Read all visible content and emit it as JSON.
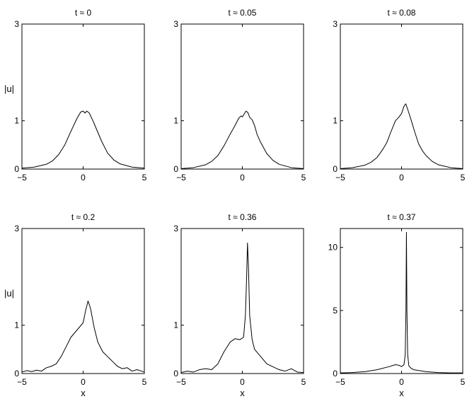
{
  "chart_data": [
    {
      "type": "line",
      "title": "t ≈ 0",
      "xlabel": "",
      "ylabel": "|u|",
      "xlim": [
        -5,
        5
      ],
      "ylim": [
        0,
        3
      ],
      "xticks": [
        "−5",
        "0",
        "5"
      ],
      "yticks": [
        "0",
        "1",
        "3"
      ],
      "ytick_values": [
        0,
        1,
        3
      ],
      "x": [
        -5.0,
        -4.0,
        -3.0,
        -2.5,
        -2.0,
        -1.5,
        -1.0,
        -0.5,
        -0.2,
        0.0,
        0.15,
        0.3,
        0.5,
        0.8,
        1.0,
        1.5,
        2.0,
        2.5,
        3.0,
        4.0,
        5.0
      ],
      "values": [
        0.02,
        0.04,
        0.1,
        0.17,
        0.3,
        0.5,
        0.78,
        1.05,
        1.18,
        1.2,
        1.16,
        1.2,
        1.16,
        1.0,
        0.88,
        0.58,
        0.33,
        0.19,
        0.11,
        0.04,
        0.02
      ]
    },
    {
      "type": "line",
      "title": "t ≈ 0.05",
      "xlabel": "",
      "ylabel": "",
      "xlim": [
        -5,
        5
      ],
      "ylim": [
        0,
        3
      ],
      "xticks": [
        "−5",
        "0",
        "5"
      ],
      "yticks": [
        "0",
        "1",
        "3"
      ],
      "ytick_values": [
        0,
        1,
        3
      ],
      "x": [
        -5.0,
        -4.0,
        -3.0,
        -2.5,
        -2.0,
        -1.5,
        -1.0,
        -0.6,
        -0.3,
        -0.1,
        0.0,
        0.1,
        0.3,
        0.45,
        0.6,
        0.8,
        1.0,
        1.2,
        1.5,
        2.0,
        2.5,
        3.0,
        4.0,
        5.0
      ],
      "values": [
        0.01,
        0.03,
        0.09,
        0.16,
        0.28,
        0.48,
        0.72,
        0.9,
        1.05,
        1.1,
        1.08,
        1.12,
        1.2,
        1.17,
        1.07,
        1.02,
        0.9,
        0.72,
        0.55,
        0.32,
        0.18,
        0.1,
        0.03,
        0.01
      ]
    },
    {
      "type": "line",
      "title": "t ≈ 0.08",
      "xlabel": "",
      "ylabel": "",
      "xlim": [
        -5,
        5
      ],
      "ylim": [
        0,
        3
      ],
      "xticks": [
        "−5",
        "0",
        "5"
      ],
      "yticks": [
        "0",
        "1",
        "3"
      ],
      "ytick_values": [
        0,
        1,
        3
      ],
      "x": [
        -5.0,
        -4.0,
        -3.0,
        -2.5,
        -2.0,
        -1.5,
        -1.2,
        -0.9,
        -0.5,
        -0.2,
        0.0,
        0.2,
        0.35,
        0.55,
        0.8,
        1.1,
        1.4,
        1.7,
        2.0,
        2.5,
        3.0,
        4.0,
        5.0
      ],
      "values": [
        0.01,
        0.03,
        0.08,
        0.14,
        0.24,
        0.42,
        0.55,
        0.75,
        1.0,
        1.08,
        1.15,
        1.3,
        1.35,
        1.2,
        1.0,
        0.75,
        0.52,
        0.38,
        0.28,
        0.16,
        0.09,
        0.03,
        0.01
      ]
    },
    {
      "type": "line",
      "title": "t ≈ 0.2",
      "xlabel": "x",
      "ylabel": "|u|",
      "xlim": [
        -5,
        5
      ],
      "ylim": [
        0,
        3
      ],
      "xticks": [
        "−5",
        "0",
        "5"
      ],
      "yticks": [
        "0",
        "1",
        "3"
      ],
      "ytick_values": [
        0,
        1,
        3
      ],
      "x": [
        -5.0,
        -4.6,
        -4.2,
        -3.8,
        -3.4,
        -3.0,
        -2.6,
        -2.2,
        -1.8,
        -1.4,
        -1.0,
        -0.5,
        0.0,
        0.2,
        0.4,
        0.6,
        0.9,
        1.2,
        1.6,
        2.0,
        2.4,
        2.8,
        3.2,
        3.6,
        4.0,
        4.4,
        5.0
      ],
      "values": [
        0.03,
        0.06,
        0.04,
        0.07,
        0.05,
        0.12,
        0.15,
        0.2,
        0.35,
        0.55,
        0.75,
        0.9,
        1.05,
        1.3,
        1.5,
        1.35,
        0.95,
        0.65,
        0.45,
        0.35,
        0.25,
        0.15,
        0.1,
        0.12,
        0.05,
        0.08,
        0.03
      ]
    },
    {
      "type": "line",
      "title": "t ≈ 0.36",
      "xlabel": "x",
      "ylabel": "",
      "xlim": [
        -5,
        5
      ],
      "ylim": [
        0,
        3
      ],
      "xticks": [
        "−5",
        "0",
        "5"
      ],
      "yticks": [
        "0",
        "1",
        "3"
      ],
      "ytick_values": [
        0,
        1,
        3
      ],
      "x": [
        -5.0,
        -4.5,
        -4.0,
        -3.5,
        -3.0,
        -2.5,
        -2.0,
        -1.5,
        -1.0,
        -0.6,
        -0.2,
        0.1,
        0.25,
        0.35,
        0.42,
        0.5,
        0.6,
        0.8,
        1.0,
        1.5,
        2.0,
        2.5,
        3.0,
        3.5,
        4.0,
        4.5,
        5.0
      ],
      "values": [
        0.02,
        0.05,
        0.03,
        0.08,
        0.1,
        0.08,
        0.2,
        0.45,
        0.65,
        0.72,
        0.7,
        0.75,
        1.2,
        2.0,
        2.7,
        2.2,
        1.2,
        0.7,
        0.5,
        0.35,
        0.2,
        0.14,
        0.08,
        0.05,
        0.1,
        0.03,
        0.02
      ]
    },
    {
      "type": "line",
      "title": "t ≈ 0.37",
      "xlabel": "x",
      "ylabel": "",
      "xlim": [
        -5,
        5
      ],
      "ylim": [
        0,
        11.5
      ],
      "xticks": [
        "−5",
        "0",
        "5"
      ],
      "yticks": [
        "0",
        "5",
        "10"
      ],
      "ytick_values": [
        0,
        5,
        10
      ],
      "x": [
        -5.0,
        -4.0,
        -3.0,
        -2.0,
        -1.0,
        -0.5,
        -0.2,
        0.0,
        0.2,
        0.3,
        0.36,
        0.4,
        0.44,
        0.5,
        0.6,
        0.8,
        1.0,
        2.0,
        3.0,
        4.0,
        5.0
      ],
      "values": [
        0.05,
        0.08,
        0.15,
        0.3,
        0.55,
        0.7,
        0.65,
        0.55,
        0.7,
        1.5,
        5.0,
        11.2,
        5.0,
        1.5,
        0.6,
        0.4,
        0.3,
        0.15,
        0.08,
        0.05,
        0.05
      ]
    }
  ]
}
